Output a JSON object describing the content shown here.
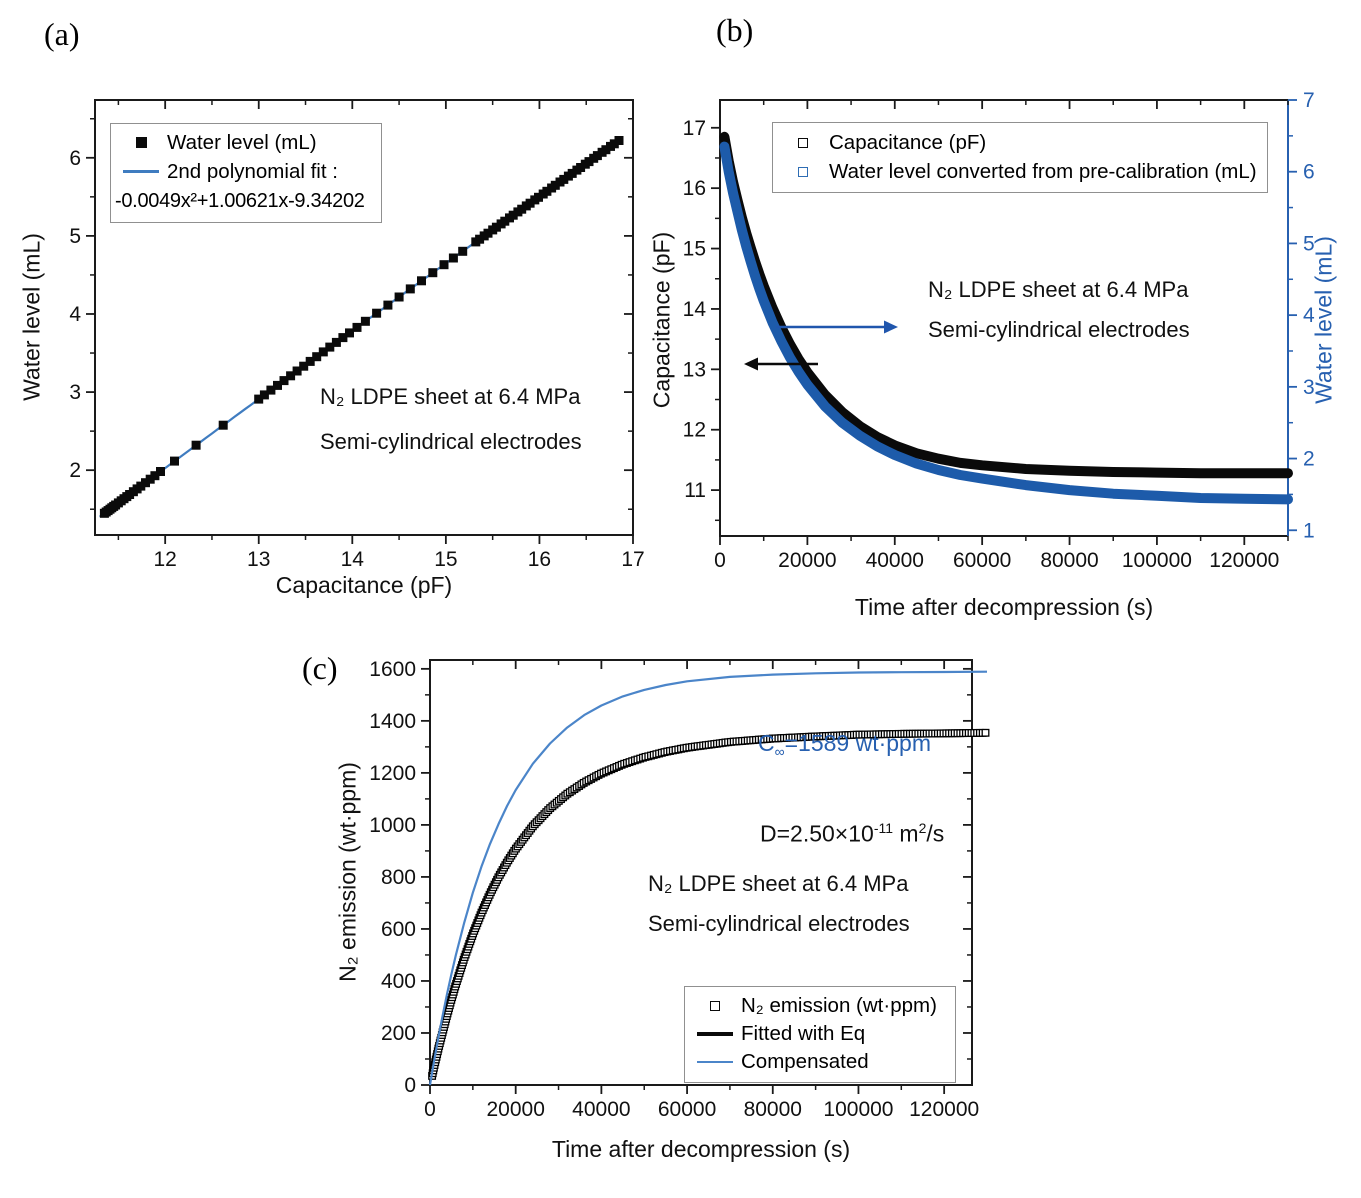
{
  "colors": {
    "black": "#0a0a0a",
    "frame": "#1a1a1a",
    "blue_fit": "#3f7cc0",
    "blue_band": "#1d5baa",
    "blue_axis": "#2760b0",
    "blue_light": "#4b85c9",
    "blue_legend": "#2e6db4",
    "blue_arrow": "#2056ad",
    "legend_border": "#909090"
  },
  "chart_data": [
    {
      "id": "a",
      "panel_label": "(a)",
      "type": "scatter",
      "x_axis": {
        "label": "Capacitance (pF)",
        "range": [
          11.25,
          17.0
        ],
        "major_ticks": [
          12,
          13,
          14,
          15,
          16,
          17
        ],
        "minor_step": 0.5
      },
      "y_axis": {
        "label": "Water level (mL)",
        "range": [
          1.17,
          6.74
        ],
        "major_ticks": [
          2,
          3,
          4,
          5,
          6
        ],
        "minor_step": 0.5
      },
      "legend": [
        {
          "marker": "filled-square",
          "label": "Water level (mL)"
        },
        {
          "marker": "line",
          "label": "2nd polynomial fit :"
        },
        {
          "marker": "none",
          "label": "-0.0049x²+1.00621x-9.34202"
        }
      ],
      "fit": {
        "coefficients": [
          -0.0049,
          1.00621,
          -9.34202
        ],
        "x_start": 11.3,
        "x_end": 16.88,
        "color": "#3f7cc0"
      },
      "data_points_x_pF": [
        11.35,
        11.37,
        11.39,
        11.41,
        11.43,
        11.45,
        11.47,
        11.5,
        11.53,
        11.56,
        11.59,
        11.62,
        11.66,
        11.7,
        11.74,
        11.79,
        11.84,
        11.89,
        11.95,
        12.1,
        12.33,
        12.62,
        13.0,
        13.06,
        13.13,
        13.2,
        13.27,
        13.34,
        13.41,
        13.48,
        13.55,
        13.62,
        13.69,
        13.76,
        13.83,
        13.9,
        13.97,
        14.05,
        14.14,
        14.26,
        14.38,
        14.5,
        14.62,
        14.74,
        14.86,
        14.98,
        15.08,
        15.18,
        15.32,
        15.36,
        15.41,
        15.45,
        15.5,
        15.54,
        15.59,
        15.63,
        15.68,
        15.72,
        15.77,
        15.81,
        15.86,
        15.9,
        15.95,
        15.99,
        16.04,
        16.08,
        16.13,
        16.17,
        16.22,
        16.26,
        16.31,
        16.35,
        16.4,
        16.44,
        16.49,
        16.53,
        16.58,
        16.62,
        16.67,
        16.71,
        16.76,
        16.8,
        16.85
      ],
      "annotation": [
        "N₂ LDPE sheet at 6.4 MPa",
        "Semi-cylindrical electrodes"
      ]
    },
    {
      "id": "b",
      "panel_label": "(b)",
      "type": "line",
      "x_axis": {
        "label": "Time after decompression (s)",
        "range": [
          0,
          130000
        ],
        "major_ticks": [
          0,
          20000,
          40000,
          60000,
          80000,
          100000,
          120000
        ],
        "minor_step": 10000
      },
      "y_left": {
        "label": "Capacitance (pF)",
        "range": [
          10.24,
          17.46
        ],
        "major_ticks": [
          11,
          12,
          13,
          14,
          15,
          16,
          17
        ],
        "minor_step": 0.5,
        "color": "#0a0a0a"
      },
      "y_right": {
        "label": "Water level (mL)",
        "range": [
          0.92,
          7.0
        ],
        "major_ticks": [
          1,
          2,
          3,
          4,
          5,
          6,
          7
        ],
        "minor_step": 0.5,
        "color": "#2760b0"
      },
      "legend": [
        {
          "marker": "open-square-black",
          "label": "Capacitance (pF)"
        },
        {
          "marker": "open-square-blue",
          "label": "Water level converted from pre-calibration (mL)"
        }
      ],
      "series": [
        {
          "name": "Capacitance (pF)",
          "axis": "left",
          "style": "band",
          "color": "#0a0a0a",
          "points": [
            [
              1000,
              16.85
            ],
            [
              2000,
              16.45
            ],
            [
              3000,
              16.1
            ],
            [
              4000,
              15.8
            ],
            [
              5000,
              15.52
            ],
            [
              6000,
              15.26
            ],
            [
              7000,
              15.02
            ],
            [
              8000,
              14.79
            ],
            [
              9000,
              14.58
            ],
            [
              10000,
              14.38
            ],
            [
              12000,
              14.02
            ],
            [
              14000,
              13.7
            ],
            [
              16000,
              13.42
            ],
            [
              18000,
              13.17
            ],
            [
              20000,
              12.95
            ],
            [
              24000,
              12.58
            ],
            [
              28000,
              12.29
            ],
            [
              32000,
              12.06
            ],
            [
              36000,
              11.88
            ],
            [
              40000,
              11.74
            ],
            [
              45000,
              11.61
            ],
            [
              50000,
              11.52
            ],
            [
              55000,
              11.45
            ],
            [
              60000,
              11.41
            ],
            [
              70000,
              11.35
            ],
            [
              80000,
              11.32
            ],
            [
              90000,
              11.3
            ],
            [
              100000,
              11.29
            ],
            [
              110000,
              11.28
            ],
            [
              120000,
              11.28
            ],
            [
              130000,
              11.28
            ]
          ]
        },
        {
          "name": "Water level converted from pre-calibration (mL)",
          "axis": "right",
          "style": "band",
          "color": "#1d5baa",
          "points": [
            [
              1000,
              6.35
            ],
            [
              2000,
              6.0
            ],
            [
              3000,
              5.7
            ],
            [
              4000,
              5.44
            ],
            [
              5000,
              5.19
            ],
            [
              6000,
              4.96
            ],
            [
              7000,
              4.75
            ],
            [
              8000,
              4.55
            ],
            [
              9000,
              4.37
            ],
            [
              10000,
              4.2
            ],
            [
              12000,
              3.9
            ],
            [
              14000,
              3.64
            ],
            [
              16000,
              3.41
            ],
            [
              18000,
              3.21
            ],
            [
              20000,
              3.03
            ],
            [
              24000,
              2.73
            ],
            [
              28000,
              2.5
            ],
            [
              32000,
              2.32
            ],
            [
              36000,
              2.17
            ],
            [
              40000,
              2.05
            ],
            [
              45000,
              1.93
            ],
            [
              50000,
              1.84
            ],
            [
              55000,
              1.77
            ],
            [
              60000,
              1.72
            ],
            [
              70000,
              1.63
            ],
            [
              80000,
              1.56
            ],
            [
              90000,
              1.51
            ],
            [
              100000,
              1.48
            ],
            [
              110000,
              1.45
            ],
            [
              120000,
              1.44
            ],
            [
              130000,
              1.43
            ]
          ]
        }
      ],
      "annotation": [
        "N₂ LDPE sheet at 6.4 MPa",
        "Semi-cylindrical electrodes"
      ]
    },
    {
      "id": "c",
      "panel_label": "(c)",
      "type": "line",
      "x_axis": {
        "label": "Time after decompression (s)",
        "range": [
          0,
          126500
        ],
        "major_ticks": [
          0,
          20000,
          40000,
          60000,
          80000,
          100000,
          120000
        ],
        "minor_step": 10000
      },
      "y_axis": {
        "label": "N₂ emission (wt·ppm)",
        "range": [
          0,
          1634
        ],
        "major_ticks": [
          0,
          200,
          400,
          600,
          800,
          1000,
          1200,
          1400,
          1600
        ],
        "minor_step": 100
      },
      "legend": [
        {
          "marker": "open-square-black",
          "label": "N₂ emission (wt·ppm)"
        },
        {
          "marker": "line-black",
          "label": "Fitted with Eq"
        },
        {
          "marker": "line-blue",
          "label": "Compensated"
        }
      ],
      "series": [
        {
          "name": "N₂ emission (wt·ppm)",
          "style": "squares-line",
          "color": "#0a0a0a",
          "points": [
            [
              500,
              35
            ],
            [
              1000,
              73
            ],
            [
              2000,
              142
            ],
            [
              3000,
              207
            ],
            [
              4000,
              270
            ],
            [
              5000,
              329
            ],
            [
              6000,
              385
            ],
            [
              8000,
              488
            ],
            [
              10000,
              580
            ],
            [
              12000,
              662
            ],
            [
              14000,
              735
            ],
            [
              16000,
              800
            ],
            [
              18000,
              857
            ],
            [
              20000,
              908
            ],
            [
              24000,
              995
            ],
            [
              28000,
              1064
            ],
            [
              32000,
              1119
            ],
            [
              36000,
              1163
            ],
            [
              40000,
              1198
            ],
            [
              45000,
              1233
            ],
            [
              50000,
              1260
            ],
            [
              55000,
              1281
            ],
            [
              60000,
              1297
            ],
            [
              70000,
              1319
            ],
            [
              80000,
              1332
            ],
            [
              90000,
              1340
            ],
            [
              100000,
              1347
            ],
            [
              110000,
              1350
            ],
            [
              120000,
              1352
            ],
            [
              130000,
              1354
            ]
          ]
        },
        {
          "name": "Compensated",
          "style": "line",
          "width": 2.2,
          "color": "#4b85c9",
          "points": [
            [
              0,
              0
            ],
            [
              1000,
              97
            ],
            [
              2000,
              187
            ],
            [
              3000,
              272
            ],
            [
              4000,
              351
            ],
            [
              5000,
              426
            ],
            [
              6000,
              497
            ],
            [
              8000,
              625
            ],
            [
              10000,
              739
            ],
            [
              12000,
              839
            ],
            [
              14000,
              927
            ],
            [
              16000,
              1004
            ],
            [
              18000,
              1073
            ],
            [
              20000,
              1134
            ],
            [
              24000,
              1235
            ],
            [
              28000,
              1313
            ],
            [
              32000,
              1374
            ],
            [
              36000,
              1422
            ],
            [
              40000,
              1459
            ],
            [
              45000,
              1494
            ],
            [
              50000,
              1519
            ],
            [
              55000,
              1538
            ],
            [
              60000,
              1552
            ],
            [
              70000,
              1569
            ],
            [
              80000,
              1578
            ],
            [
              90000,
              1583
            ],
            [
              100000,
              1586
            ],
            [
              110000,
              1587
            ],
            [
              120000,
              1588
            ],
            [
              130000,
              1589
            ]
          ]
        }
      ],
      "annotations": {
        "c_inf": {
          "prefix": "C",
          "sub": "∞",
          "rest": "=1589 wt·ppm"
        },
        "diffusivity": {
          "p1": "D=2.50×10",
          "sup1": "-11",
          "p2": " m",
          "sup2": "2",
          "p3": "/s"
        },
        "conditions": [
          "N₂ LDPE sheet at 6.4 MPa",
          "Semi-cylindrical electrodes"
        ]
      }
    }
  ]
}
